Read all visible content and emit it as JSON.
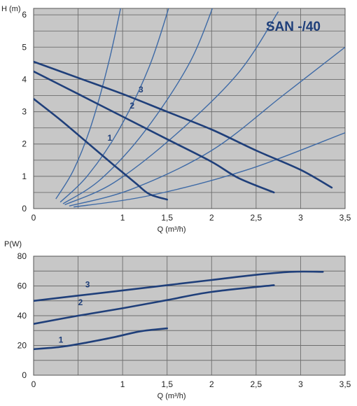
{
  "chart_data": [
    {
      "type": "line",
      "title": "SAN -/40",
      "ylabel": "H (m)",
      "xlabel": "Q (m³/h)",
      "xlim": [
        0,
        3.5
      ],
      "ylim": [
        0,
        6.2
      ],
      "x_ticks": [
        0,
        0.5,
        1,
        1.5,
        2,
        2.5,
        3,
        3.5
      ],
      "x_tick_labels": [
        "0",
        "",
        "1",
        "1,5",
        "2",
        "2,5",
        "3",
        "3,5"
      ],
      "y_ticks": [
        0,
        1,
        2,
        3,
        4,
        5,
        6
      ],
      "y_tick_labels": [
        "0",
        "1",
        "2",
        "3",
        "4",
        "5",
        "6"
      ],
      "grid": true,
      "series": [
        {
          "name": "1",
          "label_at": [
            0.83,
            2.1
          ],
          "points": [
            [
              0,
              3.4
            ],
            [
              0.3,
              2.75
            ],
            [
              0.6,
              2.05
            ],
            [
              0.9,
              1.35
            ],
            [
              1.15,
              0.78
            ],
            [
              1.3,
              0.45
            ],
            [
              1.5,
              0.28
            ]
          ]
        },
        {
          "name": "2",
          "label_at": [
            1.08,
            3.1
          ],
          "points": [
            [
              0,
              4.25
            ],
            [
              0.5,
              3.55
            ],
            [
              1,
              2.85
            ],
            [
              1.5,
              2.15
            ],
            [
              2,
              1.45
            ],
            [
              2.3,
              0.95
            ],
            [
              2.7,
              0.5
            ]
          ]
        },
        {
          "name": "3",
          "label_at": [
            1.18,
            3.6
          ],
          "points": [
            [
              0,
              4.55
            ],
            [
              0.5,
              4.05
            ],
            [
              1,
              3.55
            ],
            [
              1.5,
              3.0
            ],
            [
              2,
              2.45
            ],
            [
              2.5,
              1.8
            ],
            [
              3,
              1.2
            ],
            [
              3.35,
              0.65
            ]
          ]
        }
      ],
      "system_curves": [
        [
          [
            0.25,
            0.3
          ],
          [
            0.45,
            1.2
          ],
          [
            0.65,
            2.6
          ],
          [
            0.85,
            4.6
          ],
          [
            1.0,
            6.5
          ]
        ],
        [
          [
            0.3,
            0.2
          ],
          [
            0.6,
            1.0
          ],
          [
            0.95,
            2.4
          ],
          [
            1.3,
            4.4
          ],
          [
            1.55,
            6.5
          ]
        ],
        [
          [
            0.33,
            0.15
          ],
          [
            0.75,
            0.9
          ],
          [
            1.25,
            2.4
          ],
          [
            1.75,
            4.5
          ],
          [
            2.05,
            6.5
          ]
        ],
        [
          [
            0.35,
            0.12
          ],
          [
            0.9,
            0.8
          ],
          [
            1.6,
            2.3
          ],
          [
            2.3,
            4.2
          ],
          [
            2.75,
            6.1
          ]
        ],
        [
          [
            0.4,
            0.08
          ],
          [
            1.1,
            0.6
          ],
          [
            2.0,
            1.8
          ],
          [
            2.8,
            3.5
          ],
          [
            3.5,
            5.0
          ]
        ],
        [
          [
            0.45,
            0.05
          ],
          [
            1.3,
            0.4
          ],
          [
            2.4,
            1.2
          ],
          [
            3.5,
            2.35
          ]
        ]
      ]
    },
    {
      "type": "line",
      "ylabel": "P(W)",
      "xlabel": "Q (m³/h)",
      "xlim": [
        0,
        3.5
      ],
      "ylim": [
        0,
        80
      ],
      "x_ticks": [
        0,
        0.5,
        1,
        1.5,
        2,
        2.5,
        3,
        3.5
      ],
      "x_tick_labels": [
        "0",
        "",
        "1",
        "1,5",
        "2",
        "2,5",
        "3",
        "3,5"
      ],
      "y_ticks": [
        0,
        20,
        40,
        60,
        80
      ],
      "y_tick_labels": [
        "0",
        "20",
        "40",
        "60",
        "80"
      ],
      "grid": true,
      "series": [
        {
          "name": "1",
          "label_at": [
            0.28,
            22
          ],
          "points": [
            [
              0,
              17.5
            ],
            [
              0.3,
              19
            ],
            [
              0.6,
              22
            ],
            [
              0.9,
              25.5
            ],
            [
              1.2,
              29.5
            ],
            [
              1.5,
              31.5
            ]
          ]
        },
        {
          "name": "2",
          "label_at": [
            0.5,
            47
          ],
          "points": [
            [
              0,
              34.5
            ],
            [
              0.5,
              40
            ],
            [
              1,
              45
            ],
            [
              1.5,
              50.5
            ],
            [
              2,
              56
            ],
            [
              2.7,
              60.5
            ]
          ]
        },
        {
          "name": "3",
          "label_at": [
            0.58,
            59
          ],
          "points": [
            [
              0,
              50
            ],
            [
              0.5,
              53.5
            ],
            [
              1,
              57
            ],
            [
              1.5,
              60.5
            ],
            [
              2,
              64
            ],
            [
              2.5,
              67.5
            ],
            [
              2.9,
              69.5
            ],
            [
              3.25,
              69.5
            ]
          ]
        }
      ]
    }
  ],
  "colors": {
    "plot_bg": "#c7c7c7",
    "grid": "#6e6e6e",
    "curve": "#1f3f7a",
    "system_curve": "#3e6aa6"
  }
}
